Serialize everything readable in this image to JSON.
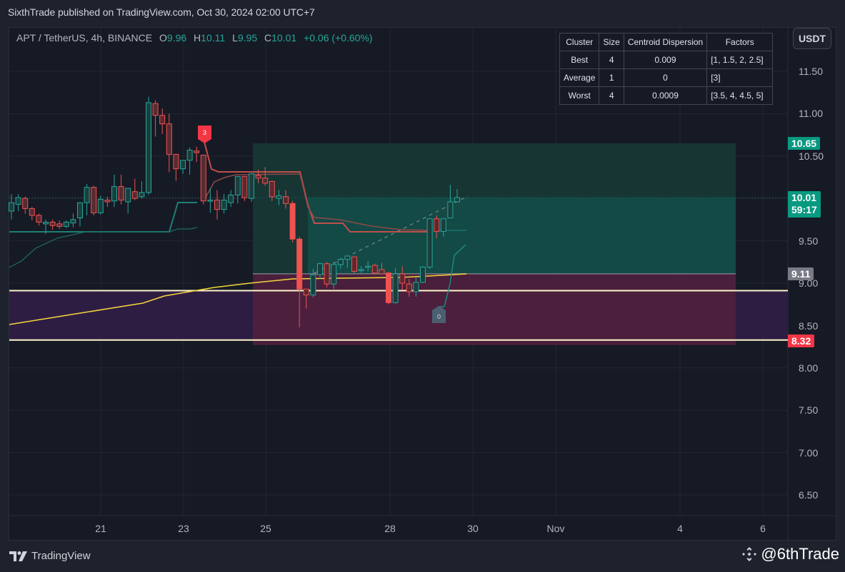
{
  "header": {
    "publish_text": "SixthTrade published on TradingView.com, Oct 30, 2024 02:00 UTC+7"
  },
  "legend": {
    "symbol": "APT / TetherUS, 4h, BINANCE",
    "open_label": "O",
    "open": "9.96",
    "high_label": "H",
    "high": "10.11",
    "low_label": "L",
    "low": "9.95",
    "close_label": "C",
    "close": "10.01",
    "change": "+0.06 (+0.60%)"
  },
  "currency_button": "USDT",
  "cluster_table": {
    "headers": [
      "Cluster",
      "Size",
      "Centroid Dispersion",
      "Factors"
    ],
    "rows": [
      [
        "Best",
        "4",
        "0.009",
        "[1, 1.5, 2, 2.5]"
      ],
      [
        "Average",
        "1",
        "0",
        "[3]"
      ],
      [
        "Worst",
        "4",
        "0.0009",
        "[3.5, 4, 4.5, 5]"
      ]
    ]
  },
  "price_axis": {
    "ticks": [
      "11.50",
      "11.00",
      "10.50",
      "9.50",
      "9.00",
      "8.50",
      "8.00",
      "7.50",
      "7.00",
      "6.50"
    ]
  },
  "price_tags": {
    "target": {
      "value": "10.65",
      "color": "#089981"
    },
    "last": {
      "value": "10.01",
      "countdown": "59:17",
      "color": "#089981"
    },
    "entry": {
      "value": "9.11",
      "color": "#787b86"
    },
    "stop": {
      "value": "8.32",
      "color": "#f23645"
    }
  },
  "time_axis": {
    "ticks": [
      "21",
      "23",
      "25",
      "28",
      "30",
      "Nov",
      "4",
      "6"
    ]
  },
  "signals": {
    "sell_label": "3",
    "buy_label": "0"
  },
  "footer": {
    "brand": "TradingView",
    "watermark": "@6thTrade"
  },
  "colors": {
    "up": "#26a69a",
    "down": "#ef5350",
    "background": "#161a25",
    "ma_line": "#f5d63d",
    "zone_line": "#fff5c8"
  },
  "chart_data": {
    "type": "candlestick",
    "title": "APT / TetherUS, 4h, BINANCE",
    "xlabel": "",
    "ylabel": "USDT",
    "ylim": [
      6.2,
      11.8
    ],
    "x_ticks": [
      "21",
      "23",
      "25",
      "28",
      "30",
      "Nov",
      "4",
      "6"
    ],
    "y_ticks": [
      6.5,
      7.0,
      7.5,
      8.0,
      8.5,
      9.0,
      9.5,
      10.0,
      10.5,
      11.0,
      11.5
    ],
    "grid": true,
    "candles": [
      {
        "o": 9.85,
        "h": 10.05,
        "l": 9.75,
        "c": 9.95
      },
      {
        "o": 9.93,
        "h": 10.05,
        "l": 9.85,
        "c": 10.01
      },
      {
        "o": 10.0,
        "h": 10.02,
        "l": 9.82,
        "c": 9.88
      },
      {
        "o": 9.88,
        "h": 9.9,
        "l": 9.74,
        "c": 9.8
      },
      {
        "o": 9.8,
        "h": 9.82,
        "l": 9.68,
        "c": 9.72
      },
      {
        "o": 9.7,
        "h": 9.75,
        "l": 9.58,
        "c": 9.72
      },
      {
        "o": 9.72,
        "h": 9.75,
        "l": 9.63,
        "c": 9.68
      },
      {
        "o": 9.7,
        "h": 9.74,
        "l": 9.64,
        "c": 9.67
      },
      {
        "o": 9.67,
        "h": 9.74,
        "l": 9.65,
        "c": 9.72
      },
      {
        "o": 9.71,
        "h": 9.82,
        "l": 9.66,
        "c": 9.75
      },
      {
        "o": 9.77,
        "h": 9.92,
        "l": 9.67,
        "c": 9.95
      },
      {
        "o": 9.95,
        "h": 10.17,
        "l": 9.8,
        "c": 10.13
      },
      {
        "o": 10.13,
        "h": 10.15,
        "l": 9.8,
        "c": 9.83
      },
      {
        "o": 9.83,
        "h": 10.03,
        "l": 9.81,
        "c": 9.99
      },
      {
        "o": 9.98,
        "h": 10.02,
        "l": 9.9,
        "c": 9.96
      },
      {
        "o": 9.97,
        "h": 10.28,
        "l": 9.9,
        "c": 10.14
      },
      {
        "o": 10.14,
        "h": 10.28,
        "l": 9.93,
        "c": 9.98
      },
      {
        "o": 9.96,
        "h": 10.12,
        "l": 9.82,
        "c": 10.12
      },
      {
        "o": 10.08,
        "h": 10.23,
        "l": 9.98,
        "c": 10.0
      },
      {
        "o": 10.02,
        "h": 10.2,
        "l": 10.0,
        "c": 10.07
      },
      {
        "o": 10.07,
        "h": 11.2,
        "l": 10.04,
        "c": 11.13
      },
      {
        "o": 11.12,
        "h": 11.16,
        "l": 10.73,
        "c": 10.98
      },
      {
        "o": 10.98,
        "h": 11.06,
        "l": 10.76,
        "c": 10.88
      },
      {
        "o": 10.88,
        "h": 11.0,
        "l": 10.31,
        "c": 10.52
      },
      {
        "o": 10.52,
        "h": 10.52,
        "l": 10.21,
        "c": 10.35
      },
      {
        "o": 10.35,
        "h": 10.43,
        "l": 10.29,
        "c": 10.45
      },
      {
        "o": 10.45,
        "h": 10.6,
        "l": 10.28,
        "c": 10.57
      },
      {
        "o": 10.56,
        "h": 10.61,
        "l": 10.43,
        "c": 10.54
      },
      {
        "o": 10.51,
        "h": 10.52,
        "l": 9.93,
        "c": 9.97
      },
      {
        "o": 9.97,
        "h": 10.12,
        "l": 9.83,
        "c": 9.98
      },
      {
        "o": 9.98,
        "h": 10.1,
        "l": 9.75,
        "c": 9.87
      },
      {
        "o": 9.87,
        "h": 10.05,
        "l": 9.82,
        "c": 9.98
      },
      {
        "o": 9.95,
        "h": 10.1,
        "l": 9.9,
        "c": 10.04
      },
      {
        "o": 10.04,
        "h": 10.24,
        "l": 9.94,
        "c": 10.26
      },
      {
        "o": 10.26,
        "h": 10.23,
        "l": 9.97,
        "c": 10.01
      },
      {
        "o": 10.0,
        "h": 10.3,
        "l": 9.96,
        "c": 10.29
      },
      {
        "o": 10.27,
        "h": 10.34,
        "l": 10.18,
        "c": 10.24
      },
      {
        "o": 10.24,
        "h": 10.37,
        "l": 10.15,
        "c": 10.18
      },
      {
        "o": 10.2,
        "h": 10.21,
        "l": 9.97,
        "c": 10.02
      },
      {
        "o": 10.0,
        "h": 10.1,
        "l": 9.92,
        "c": 10.03
      },
      {
        "o": 10.02,
        "h": 10.1,
        "l": 9.88,
        "c": 9.94
      },
      {
        "o": 9.94,
        "h": 9.97,
        "l": 9.48,
        "c": 9.52
      },
      {
        "o": 9.52,
        "h": 9.55,
        "l": 8.48,
        "c": 8.93
      },
      {
        "o": 8.93,
        "h": 8.9,
        "l": 8.7,
        "c": 8.86
      },
      {
        "o": 8.86,
        "h": 9.17,
        "l": 8.83,
        "c": 9.1
      },
      {
        "o": 9.1,
        "h": 9.24,
        "l": 9.05,
        "c": 9.23
      },
      {
        "o": 9.23,
        "h": 9.25,
        "l": 8.95,
        "c": 8.99
      },
      {
        "o": 8.99,
        "h": 9.25,
        "l": 8.93,
        "c": 9.22
      },
      {
        "o": 9.22,
        "h": 9.3,
        "l": 9.17,
        "c": 9.28
      },
      {
        "o": 9.28,
        "h": 9.32,
        "l": 9.18,
        "c": 9.32
      },
      {
        "o": 9.31,
        "h": 9.31,
        "l": 9.12,
        "c": 9.14
      },
      {
        "o": 9.16,
        "h": 9.2,
        "l": 9.12,
        "c": 9.16
      },
      {
        "o": 9.19,
        "h": 9.26,
        "l": 9.14,
        "c": 9.2
      },
      {
        "o": 9.21,
        "h": 9.23,
        "l": 9.11,
        "c": 9.12
      },
      {
        "o": 9.16,
        "h": 9.24,
        "l": 9.1,
        "c": 9.11
      },
      {
        "o": 9.12,
        "h": 9.13,
        "l": 8.75,
        "c": 8.77
      },
      {
        "o": 8.77,
        "h": 9.18,
        "l": 8.76,
        "c": 9.11
      },
      {
        "o": 9.11,
        "h": 9.2,
        "l": 8.92,
        "c": 9.0
      },
      {
        "o": 8.99,
        "h": 9.05,
        "l": 8.84,
        "c": 8.9
      },
      {
        "o": 8.9,
        "h": 9.07,
        "l": 8.84,
        "c": 9.01
      },
      {
        "o": 9.01,
        "h": 9.2,
        "l": 9.0,
        "c": 9.19
      },
      {
        "o": 9.19,
        "h": 9.75,
        "l": 9.17,
        "c": 9.76
      },
      {
        "o": 9.76,
        "h": 9.8,
        "l": 9.53,
        "c": 9.61
      },
      {
        "o": 9.61,
        "h": 9.76,
        "l": 9.55,
        "c": 9.76
      },
      {
        "o": 9.77,
        "h": 10.16,
        "l": 9.77,
        "c": 9.96
      },
      {
        "o": 9.96,
        "h": 10.11,
        "l": 9.95,
        "c": 10.01
      }
    ],
    "levels": [
      {
        "name": "target",
        "value": 10.65
      },
      {
        "name": "entry",
        "value": 9.11
      },
      {
        "name": "zone_top",
        "value": 8.92
      },
      {
        "name": "stop",
        "value": 8.32
      }
    ],
    "series": [
      {
        "name": "Trailing stop (upper)",
        "color": "#ef5350"
      },
      {
        "name": "Trailing stop (lower)",
        "color": "#26a69a"
      },
      {
        "name": "Moving average",
        "color": "#f5d63d"
      }
    ]
  }
}
